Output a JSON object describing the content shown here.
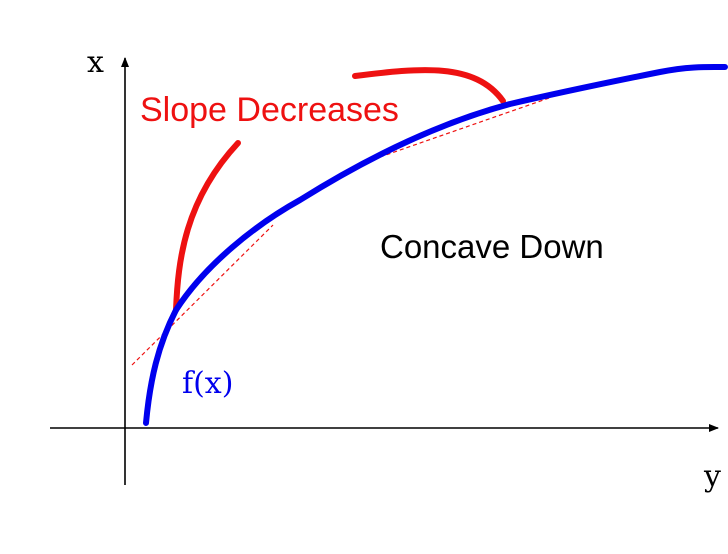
{
  "axes": {
    "vertical_label": "x",
    "horizontal_label": "y"
  },
  "labels": {
    "slope": "Slope Decreases",
    "concavity": "Concave Down",
    "function": "f(x)"
  },
  "colors": {
    "axis": "#000000",
    "curve": "#0000ee",
    "annotation": "#ee1111",
    "text": "#000000"
  }
}
